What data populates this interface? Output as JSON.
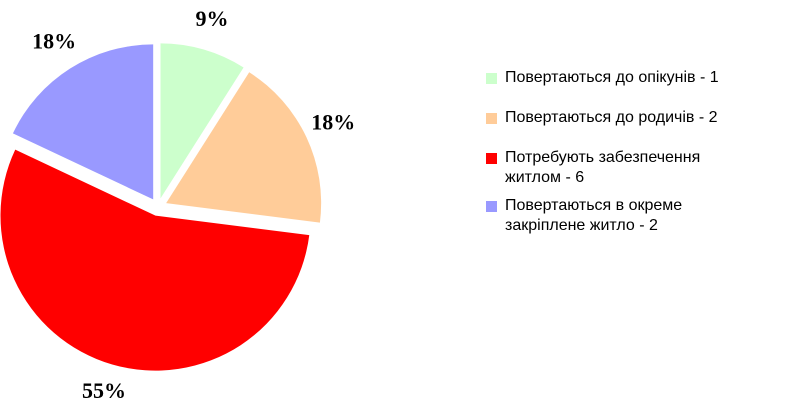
{
  "chart_data": {
    "type": "pie",
    "categories": [
      "Повертаються до опікунів - 1",
      "Повертаються до родичів - 2",
      "Потребують забезпечення житлом - 6",
      "Повертаються в окреме закріплене житло - 2"
    ],
    "values": [
      9,
      18,
      55,
      18
    ],
    "value_labels": [
      "9%",
      "18%",
      "55%",
      "18%"
    ],
    "colors": [
      "#ccffcc",
      "#ffcc99",
      "#ff0000",
      "#9999ff"
    ]
  }
}
